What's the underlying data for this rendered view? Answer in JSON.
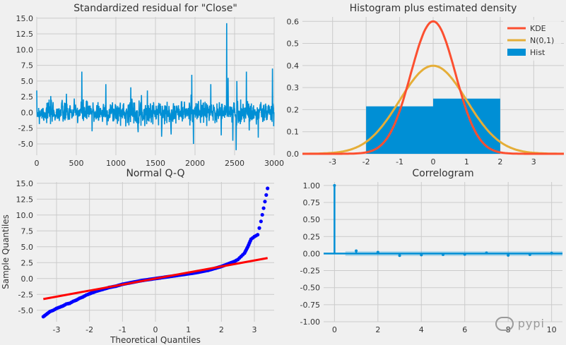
{
  "colors": {
    "background": "#f0f0f0",
    "grid": "#cbcbcb",
    "primary_blue": "#008fd5",
    "kde_red": "#fc4f30",
    "normal_orange": "#e5ae38",
    "qq_points": "#0000ff",
    "qq_line": "#ff0000"
  },
  "watermark": "pypi",
  "chart_data": [
    {
      "type": "line",
      "title": "Standardized residual for \"Close\"",
      "xlim": [
        0,
        3000
      ],
      "ylim": [
        -6.8,
        15.2
      ],
      "xticks": [
        0,
        500,
        1000,
        1500,
        2000,
        2500,
        3000
      ],
      "yticks": [
        -5.0,
        -2.5,
        0.0,
        2.5,
        5.0,
        7.5,
        10.0,
        12.5,
        15.0
      ],
      "n_points": 3000,
      "noise_sd": 0.9,
      "spikes": [
        {
          "x": 570,
          "y": 6.5
        },
        {
          "x": 875,
          "y": 4.5
        },
        {
          "x": 1190,
          "y": 4.0
        },
        {
          "x": 1400,
          "y": 3.5
        },
        {
          "x": 1960,
          "y": 6.0
        },
        {
          "x": 2200,
          "y": 4.5
        },
        {
          "x": 2400,
          "y": 14.2
        },
        {
          "x": 2420,
          "y": 5.5
        },
        {
          "x": 2530,
          "y": 5.0
        },
        {
          "x": 2650,
          "y": 6.5
        },
        {
          "x": 2980,
          "y": 7.0
        },
        {
          "x": 1980,
          "y": -5.0
        },
        {
          "x": 2520,
          "y": -6.0
        },
        {
          "x": 2480,
          "y": -4.5
        },
        {
          "x": 2800,
          "y": -4.0
        },
        {
          "x": 700,
          "y": -3.0
        },
        {
          "x": 1700,
          "y": -3.5
        }
      ],
      "grid": true
    },
    {
      "type": "histogram",
      "title": "Histogram plus estimated density",
      "xlim": [
        -3.9,
        3.9
      ],
      "ylim": [
        0,
        0.62
      ],
      "xticks": [
        -3,
        -2,
        -1,
        0,
        1,
        2,
        3
      ],
      "yticks": [
        0.0,
        0.1,
        0.2,
        0.3,
        0.4,
        0.5,
        0.6
      ],
      "bins": [
        {
          "x0": -2.0,
          "x1": 0.0,
          "height": 0.215
        },
        {
          "x0": 0.0,
          "x1": 2.0,
          "height": 0.25
        }
      ],
      "kde": {
        "sd": 0.665,
        "peak": 0.6
      },
      "normal": {
        "mean": 0,
        "sd": 1
      },
      "legend": [
        "KDE",
        "N(0,1)",
        "Hist"
      ],
      "legend_position": "top-right",
      "grid": true
    },
    {
      "type": "scatter",
      "title": "Normal Q-Q",
      "xlabel": "Theoretical Quantiles",
      "ylabel": "Sample Quantiles",
      "xlim": [
        -3.6,
        3.6
      ],
      "ylim": [
        -6.8,
        15.2
      ],
      "xticks": [
        -3,
        -2,
        -1,
        0,
        1,
        2,
        3
      ],
      "yticks": [
        -5.0,
        -2.5,
        0.0,
        2.5,
        5.0,
        7.5,
        10.0,
        12.5,
        15.0
      ],
      "points": [
        [
          -3.4,
          -6.0
        ],
        [
          -3.2,
          -5.2
        ],
        [
          -3.1,
          -5.0
        ],
        [
          -3.0,
          -4.7
        ],
        [
          -2.9,
          -4.5
        ],
        [
          -2.8,
          -4.3
        ],
        [
          -2.7,
          -4.0
        ],
        [
          -2.6,
          -3.9
        ],
        [
          -2.5,
          -3.6
        ],
        [
          -2.4,
          -3.4
        ],
        [
          -2.3,
          -3.1
        ],
        [
          -2.2,
          -2.9
        ],
        [
          -2.1,
          -2.6
        ],
        [
          -2.0,
          -2.4
        ],
        [
          -1.8,
          -2.0
        ],
        [
          -1.6,
          -1.7
        ],
        [
          -1.4,
          -1.4
        ],
        [
          -1.2,
          -1.2
        ],
        [
          -1.0,
          -0.9
        ],
        [
          -0.8,
          -0.7
        ],
        [
          -0.6,
          -0.5
        ],
        [
          -0.4,
          -0.3
        ],
        [
          -0.2,
          -0.15
        ],
        [
          0.0,
          0.0
        ],
        [
          0.2,
          0.15
        ],
        [
          0.4,
          0.3
        ],
        [
          0.6,
          0.45
        ],
        [
          0.8,
          0.6
        ],
        [
          1.0,
          0.75
        ],
        [
          1.2,
          0.9
        ],
        [
          1.4,
          1.1
        ],
        [
          1.6,
          1.3
        ],
        [
          1.8,
          1.6
        ],
        [
          2.0,
          1.9
        ],
        [
          2.2,
          2.3
        ],
        [
          2.4,
          2.7
        ],
        [
          2.5,
          3.0
        ],
        [
          2.6,
          3.5
        ],
        [
          2.7,
          4.0
        ],
        [
          2.75,
          4.5
        ],
        [
          2.8,
          5.0
        ],
        [
          2.85,
          5.6
        ],
        [
          2.9,
          6.2
        ],
        [
          3.0,
          6.6
        ],
        [
          3.1,
          6.9
        ],
        [
          3.2,
          9.0
        ],
        [
          3.4,
          14.2
        ]
      ],
      "reference_line": {
        "slope": 0.95,
        "intercept": 0
      },
      "grid": true
    },
    {
      "type": "bar",
      "title": "Correlogram",
      "xlim": [
        -0.5,
        10.5
      ],
      "ylim": [
        -1.0,
        1.05
      ],
      "xticks": [
        0,
        2,
        4,
        6,
        8,
        10
      ],
      "yticks": [
        -1.0,
        -0.75,
        -0.5,
        -0.25,
        0.0,
        0.25,
        0.5,
        0.75,
        1.0
      ],
      "lags": [
        0,
        1,
        2,
        3,
        4,
        5,
        6,
        7,
        8,
        9,
        10
      ],
      "values": [
        1.0,
        0.04,
        0.02,
        -0.03,
        -0.02,
        -0.015,
        -0.01,
        0.01,
        -0.025,
        -0.015,
        0.005
      ],
      "confidence": 0.036,
      "grid": true
    }
  ]
}
